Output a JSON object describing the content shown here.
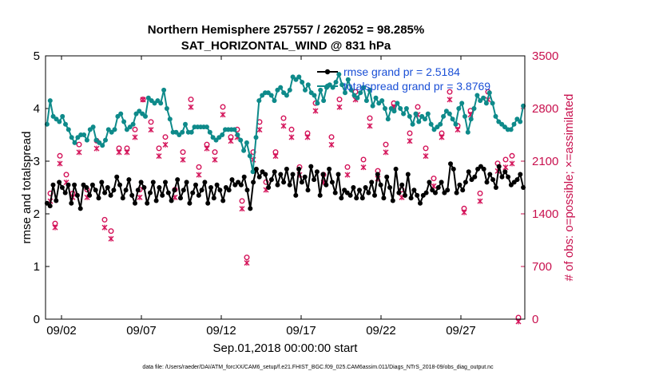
{
  "title_line1": "Northern Hemisphere 257557 / 262052 = 98.285%",
  "title_line2": "SAT_HORIZONTAL_WIND @ 831 hPa",
  "xlabel": "Sep.01,2018 00:00:00 start",
  "ylabel_left": "rmse and totalspread",
  "ylabel_right": "# of obs: o=possible; ×=assimilated",
  "footnote": "data file: /Users/raeder/DAI/ATM_forcXX/CAM6_setup/f.e21.FHIST_BGC.f09_025.CAM6assim.011/Diags_NTrS_2018-09/obs_diag_output.nc",
  "colors": {
    "rmse": "#000000",
    "spread": "#0e8a8a",
    "obs": "#d4145a",
    "legend_text": "#1a4fd6",
    "right_axis": "#c8104e"
  },
  "chart_data": {
    "type": "line",
    "title": "Northern Hemisphere 257557 / 262052 = 98.285% / SAT_HORIZONTAL_WIND @ 831 hPa",
    "xlabel": "Sep.01,2018 00:00:00 start",
    "x_unit": "days since Sep.01,2018 00:00",
    "x_ticks": [
      {
        "value": 1,
        "label": "09/02"
      },
      {
        "value": 6,
        "label": "09/07"
      },
      {
        "value": 11,
        "label": "09/12"
      },
      {
        "value": 16,
        "label": "09/17"
      },
      {
        "value": 21,
        "label": "09/22"
      },
      {
        "value": 26,
        "label": "09/27"
      }
    ],
    "xlim": [
      0,
      30
    ],
    "ylim_left": [
      0,
      5
    ],
    "yticks_left": [
      0,
      1,
      2,
      3,
      4,
      5
    ],
    "ylim_right": [
      0,
      3500
    ],
    "yticks_right": [
      0,
      700,
      1400,
      2100,
      2800,
      3500
    ],
    "legend": {
      "location": "top-right",
      "entries": [
        "rmse grand pr = 2.5184",
        "totalspread grand pr = 3.8769"
      ]
    },
    "series": [
      {
        "name": "rmse",
        "axis": "left",
        "marker": "dot",
        "values": [
          2.2,
          2.15,
          2.55,
          2.25,
          2.6,
          2.5,
          2.4,
          2.55,
          2.2,
          2.55,
          2.35,
          2.1,
          2.55,
          2.5,
          2.35,
          2.55,
          2.45,
          2.3,
          2.6,
          2.4,
          2.5,
          2.35,
          2.45,
          2.7,
          2.55,
          2.3,
          2.45,
          2.65,
          2.35,
          2.2,
          2.45,
          2.6,
          2.5,
          2.2,
          2.4,
          2.6,
          2.25,
          2.5,
          2.35,
          2.6,
          2.4,
          2.25,
          2.45,
          2.65,
          2.3,
          2.45,
          2.6,
          2.2,
          2.4,
          2.55,
          2.35,
          2.45,
          2.6,
          2.2,
          2.5,
          2.3,
          2.55,
          2.45,
          2.25,
          2.5,
          2.45,
          2.65,
          2.55,
          2.6,
          2.55,
          2.7,
          2.45,
          2.1,
          2.6,
          2.85,
          2.7,
          2.8,
          2.75,
          2.5,
          2.65,
          2.8,
          2.55,
          2.75,
          2.6,
          2.85,
          2.55,
          2.75,
          2.35,
          2.85,
          2.6,
          2.7,
          2.45,
          2.9,
          2.65,
          2.8,
          2.35,
          2.75,
          2.55,
          2.85,
          2.6,
          2.4,
          2.75,
          2.3,
          2.45,
          2.4,
          2.35,
          2.5,
          2.3,
          2.45,
          2.3,
          2.5,
          2.4,
          2.6,
          2.35,
          2.75,
          2.55,
          2.3,
          2.7,
          2.5,
          2.25,
          2.85,
          2.4,
          2.55,
          2.35,
          2.75,
          2.3,
          2.45,
          2.35,
          2.2,
          2.35,
          2.4,
          2.6,
          2.45,
          2.4,
          2.5,
          2.6,
          2.4,
          2.45,
          2.95,
          2.85,
          2.4,
          2.55,
          2.45,
          2.6,
          2.8,
          2.65,
          2.7,
          2.85,
          2.9,
          2.85,
          2.6,
          2.75,
          2.65,
          2.5,
          2.9,
          2.7,
          2.8,
          2.7,
          2.55,
          2.6,
          2.65,
          2.75,
          2.5
        ]
      },
      {
        "name": "totalspread",
        "axis": "left",
        "marker": "dot",
        "values": [
          3.7,
          4.15,
          3.85,
          3.8,
          3.75,
          3.85,
          3.7,
          3.6,
          3.45,
          3.35,
          3.45,
          3.5,
          3.5,
          3.4,
          3.6,
          3.65,
          3.4,
          3.35,
          3.3,
          3.4,
          3.6,
          3.55,
          3.6,
          3.85,
          3.9,
          3.75,
          3.6,
          3.65,
          3.7,
          3.9,
          3.95,
          3.9,
          3.85,
          4.2,
          4.15,
          4.1,
          4.15,
          4.1,
          4.35,
          4.0,
          3.8,
          3.55,
          3.55,
          3.5,
          3.55,
          3.7,
          3.55,
          3.55,
          3.65,
          3.65,
          3.65,
          3.65,
          3.65,
          3.55,
          3.45,
          3.4,
          3.45,
          3.5,
          3.6,
          3.6,
          3.6,
          3.6,
          3.5,
          3.4,
          3.2,
          3.35,
          3.1,
          2.8,
          3.45,
          4.15,
          4.25,
          4.3,
          4.3,
          4.25,
          4.15,
          4.35,
          4.4,
          4.3,
          4.25,
          4.35,
          4.6,
          4.55,
          4.6,
          4.5,
          4.35,
          4.45,
          4.3,
          4.25,
          4.1,
          4.35,
          4.15,
          4.4,
          4.45,
          4.4,
          4.5,
          4.65,
          4.45,
          4.3,
          4.55,
          4.35,
          4.25,
          4.2,
          4.3,
          4.4,
          4.15,
          4.35,
          4.05,
          4.2,
          4.1,
          4.15,
          4.0,
          3.8,
          4.0,
          3.95,
          4.1,
          4.0,
          3.9,
          4.0,
          3.85,
          3.7,
          3.9,
          3.75,
          3.85,
          3.8,
          3.9,
          3.7,
          3.6,
          3.65,
          3.7,
          3.85,
          3.95,
          3.9,
          3.8,
          3.7,
          4.0,
          4.1,
          3.85,
          3.55,
          3.8,
          4.0,
          4.25,
          4.15,
          4.2,
          4.1,
          4.3,
          4.1,
          3.85,
          3.75,
          3.7,
          3.65,
          3.6,
          3.6,
          3.7,
          3.8,
          3.75,
          4.05
        ]
      },
      {
        "name": "obs_possible",
        "axis": "right",
        "marker": "o",
        "points": [
          [
            0.3,
            1650
          ],
          [
            0.6,
            1250
          ],
          [
            0.9,
            2150
          ],
          [
            1.3,
            1900
          ],
          [
            1.7,
            1650
          ],
          [
            2.1,
            2300
          ],
          [
            2.6,
            1700
          ],
          [
            3.2,
            2350
          ],
          [
            3.7,
            1300
          ],
          [
            4.1,
            1150
          ],
          [
            4.6,
            2250
          ],
          [
            5.1,
            2250
          ],
          [
            5.6,
            2500
          ],
          [
            5.9,
            1700
          ],
          [
            6.1,
            2900
          ],
          [
            6.6,
            2600
          ],
          [
            7.1,
            2250
          ],
          [
            7.5,
            2400
          ],
          [
            8.1,
            1700
          ],
          [
            8.6,
            2200
          ],
          [
            9.1,
            2900
          ],
          [
            9.6,
            2000
          ],
          [
            10.1,
            2300
          ],
          [
            10.6,
            2200
          ],
          [
            11.1,
            2800
          ],
          [
            11.6,
            2400
          ],
          [
            12.0,
            2500
          ],
          [
            12.3,
            1550
          ],
          [
            12.6,
            800
          ],
          [
            13.0,
            2200
          ],
          [
            13.4,
            2600
          ],
          [
            13.8,
            1800
          ],
          [
            14.4,
            2200
          ],
          [
            14.9,
            2650
          ],
          [
            15.4,
            2500
          ],
          [
            15.9,
            2000
          ],
          [
            16.4,
            2450
          ],
          [
            16.9,
            2850
          ],
          [
            17.4,
            1900
          ],
          [
            17.9,
            2400
          ],
          [
            18.4,
            2900
          ],
          [
            18.9,
            2000
          ],
          [
            19.4,
            3000
          ],
          [
            19.9,
            2100
          ],
          [
            20.3,
            2650
          ],
          [
            20.8,
            1950
          ],
          [
            21.3,
            2300
          ],
          [
            21.8,
            2850
          ],
          [
            22.3,
            1700
          ],
          [
            22.8,
            2450
          ],
          [
            23.3,
            2800
          ],
          [
            23.8,
            2250
          ],
          [
            24.3,
            1850
          ],
          [
            24.8,
            2450
          ],
          [
            25.3,
            3000
          ],
          [
            25.8,
            2550
          ],
          [
            26.2,
            1450
          ],
          [
            26.6,
            2750
          ],
          [
            27.2,
            1650
          ],
          [
            27.7,
            3000
          ],
          [
            28.3,
            2050
          ],
          [
            28.8,
            2100
          ],
          [
            29.2,
            2150
          ],
          [
            29.6,
            0
          ]
        ]
      },
      {
        "name": "obs_assimilated",
        "axis": "right",
        "marker": "x",
        "points": [
          [
            0.3,
            1600
          ],
          [
            0.6,
            1250
          ],
          [
            0.9,
            2100
          ],
          [
            1.3,
            1850
          ],
          [
            1.7,
            1650
          ],
          [
            2.1,
            2250
          ],
          [
            2.6,
            1650
          ],
          [
            3.2,
            2300
          ],
          [
            3.7,
            1250
          ],
          [
            4.1,
            1100
          ],
          [
            4.6,
            2250
          ],
          [
            5.1,
            2250
          ],
          [
            5.6,
            2450
          ],
          [
            5.9,
            1650
          ],
          [
            6.1,
            2950
          ],
          [
            6.6,
            2550
          ],
          [
            7.1,
            2200
          ],
          [
            7.5,
            2350
          ],
          [
            8.1,
            1650
          ],
          [
            8.6,
            2150
          ],
          [
            9.1,
            2850
          ],
          [
            9.6,
            1950
          ],
          [
            10.1,
            2300
          ],
          [
            10.6,
            2150
          ],
          [
            11.1,
            2750
          ],
          [
            11.6,
            2400
          ],
          [
            12.0,
            2450
          ],
          [
            12.3,
            1500
          ],
          [
            12.6,
            780
          ],
          [
            13.0,
            2150
          ],
          [
            13.4,
            2550
          ],
          [
            13.8,
            1750
          ],
          [
            14.4,
            2200
          ],
          [
            14.9,
            2600
          ],
          [
            15.4,
            2450
          ],
          [
            15.9,
            1950
          ],
          [
            16.4,
            2450
          ],
          [
            16.9,
            2800
          ],
          [
            17.4,
            1850
          ],
          [
            17.9,
            2350
          ],
          [
            18.4,
            2850
          ],
          [
            18.9,
            1950
          ],
          [
            19.4,
            2950
          ],
          [
            19.9,
            2050
          ],
          [
            20.3,
            2600
          ],
          [
            20.8,
            1900
          ],
          [
            21.3,
            2250
          ],
          [
            21.8,
            2850
          ],
          [
            22.3,
            1650
          ],
          [
            22.8,
            2400
          ],
          [
            23.3,
            2750
          ],
          [
            23.8,
            2200
          ],
          [
            24.3,
            1800
          ],
          [
            24.8,
            2450
          ],
          [
            25.3,
            2950
          ],
          [
            25.8,
            2550
          ],
          [
            26.2,
            1450
          ],
          [
            26.6,
            2750
          ],
          [
            27.2,
            1600
          ],
          [
            27.7,
            2950
          ],
          [
            28.3,
            2000
          ],
          [
            28.8,
            2050
          ],
          [
            29.2,
            2100
          ],
          [
            29.6,
            0
          ]
        ]
      }
    ]
  }
}
